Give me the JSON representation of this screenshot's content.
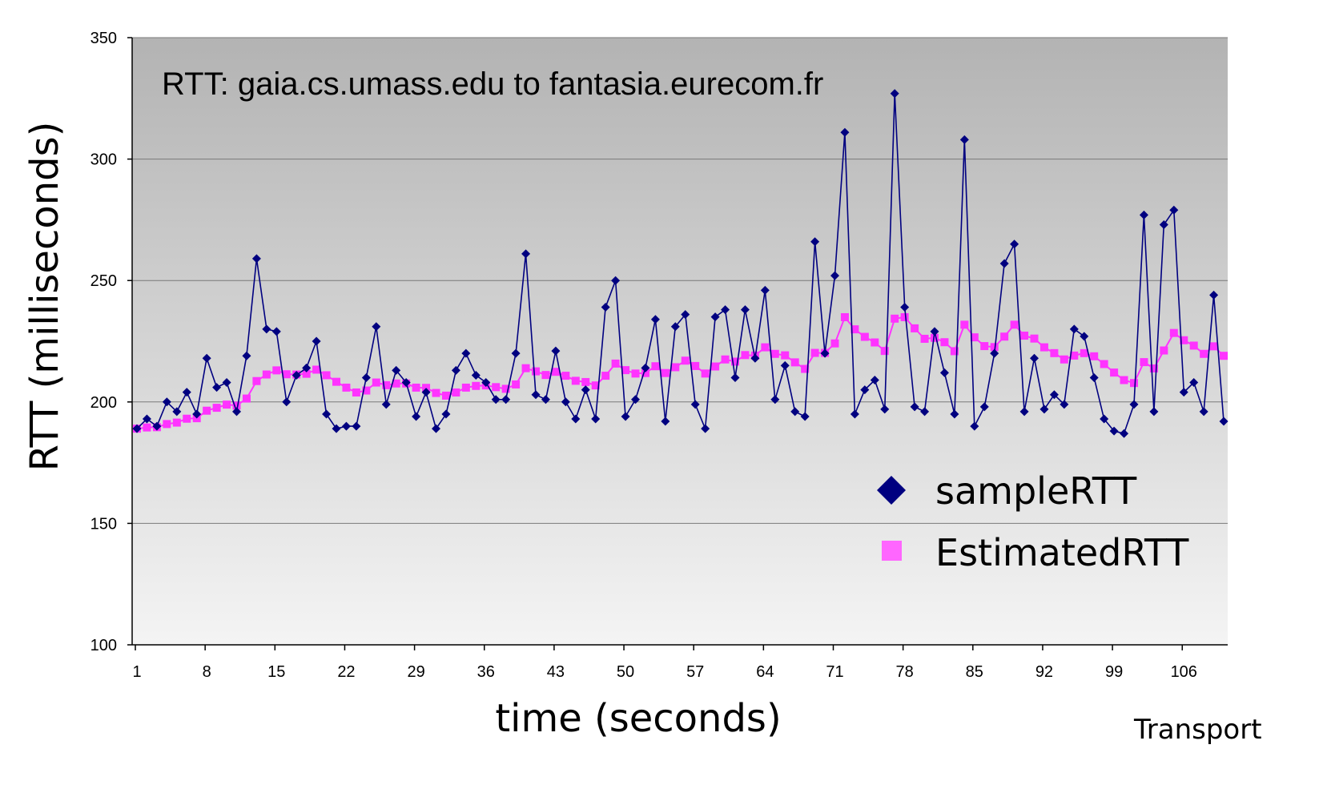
{
  "footer_text": "Transport",
  "chart_data": {
    "type": "line",
    "title": "RTT: gaia.cs.umass.edu to fantasia.eurecom.fr",
    "xlabel": "time (seconds)",
    "ylabel": "RTT (milliseconds)",
    "ylim": [
      100,
      350
    ],
    "yticks": [
      100,
      150,
      200,
      250,
      300,
      350
    ],
    "xlim": [
      1,
      113
    ],
    "xticks": [
      1,
      8,
      15,
      22,
      29,
      36,
      43,
      50,
      57,
      64,
      71,
      78,
      85,
      92,
      99,
      106
    ],
    "grid": "horizontal",
    "background": "gradient-gray",
    "legend_position": "bottom-right",
    "colors": {
      "sampleRTT": "#000080",
      "EstimatedRTT": "#ff33ff"
    },
    "series": [
      {
        "name": "sampleRTT",
        "marker": "diamond",
        "values": [
          189,
          193,
          190,
          200,
          196,
          204,
          195,
          218,
          206,
          208,
          196,
          219,
          259,
          230,
          229,
          200,
          211,
          214,
          225,
          195,
          189,
          190,
          190,
          210,
          231,
          199,
          213,
          208,
          194,
          204,
          189,
          195,
          213,
          220,
          211,
          208,
          201,
          201,
          220,
          261,
          203,
          201,
          221,
          200,
          193,
          205,
          193,
          239,
          250,
          194,
          201,
          214,
          234,
          192,
          231,
          236,
          199,
          189,
          235,
          238,
          210,
          238,
          218,
          246,
          201,
          215,
          196,
          194,
          266,
          220,
          252,
          311,
          195,
          205,
          209,
          197,
          327,
          239,
          198,
          196,
          229,
          212,
          195,
          308,
          190,
          198,
          220,
          257,
          265,
          196,
          218,
          197,
          203,
          199,
          230,
          227,
          210,
          193,
          188,
          187,
          199,
          277,
          196,
          273,
          279,
          204,
          208,
          196,
          244,
          192
        ]
      },
      {
        "name": "EstimatedRTT",
        "marker": "square",
        "values": [
          189,
          189.5,
          189.6,
          190.9,
          191.5,
          193.1,
          193.3,
          196.4,
          197.6,
          198.9,
          198.5,
          201.4,
          208.6,
          211.3,
          213.0,
          211.4,
          211.3,
          211.6,
          213.3,
          211.0,
          208.3,
          205.9,
          203.9,
          204.7,
          208.0,
          206.9,
          207.6,
          207.6,
          205.9,
          205.8,
          203.7,
          202.6,
          203.9,
          205.9,
          206.6,
          206.8,
          206.1,
          205.4,
          207.2,
          213.9,
          212.6,
          211.1,
          212.4,
          210.8,
          208.7,
          208.2,
          206.8,
          210.8,
          215.8,
          213.1,
          211.7,
          211.9,
          214.7,
          211.9,
          214.3,
          217.0,
          214.8,
          211.7,
          214.6,
          217.5,
          216.6,
          219.3,
          219.1,
          222.5,
          219.8,
          219.2,
          216.3,
          213.6,
          220.2,
          220.2,
          224.1,
          234.9,
          229.9,
          226.8,
          224.5,
          221.0,
          234.3,
          234.9,
          230.3,
          226.0,
          226.4,
          224.6,
          220.9,
          231.8,
          226.6,
          223.0,
          222.6,
          226.9,
          231.8,
          227.3,
          226.1,
          222.5,
          220.1,
          217.5,
          219.1,
          220.1,
          218.8,
          215.6,
          212.1,
          209.0,
          207.8,
          216.4,
          213.8,
          221.2,
          228.4,
          225.4,
          223.2,
          219.8,
          222.9,
          219.0
        ]
      }
    ]
  }
}
